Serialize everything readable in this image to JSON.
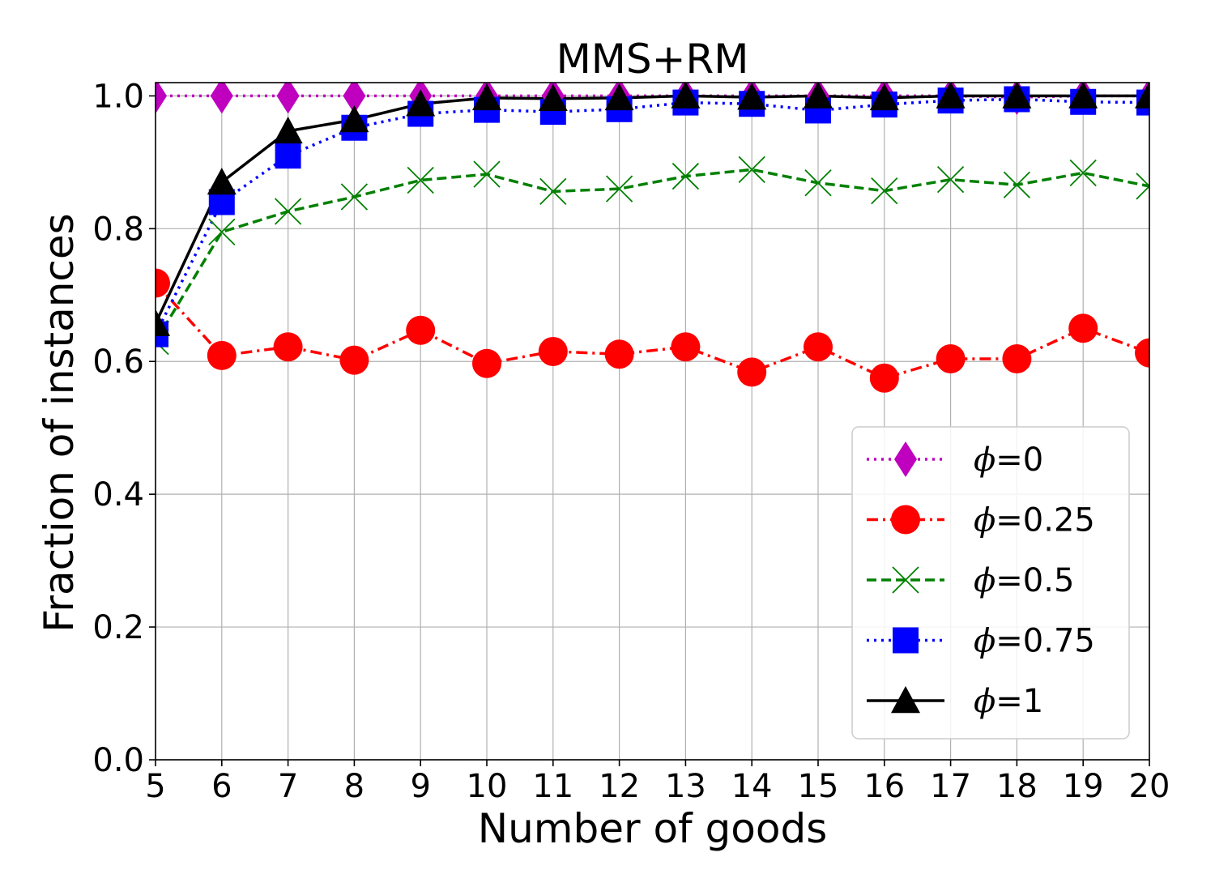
{
  "chart_data": {
    "type": "line",
    "title": "MMS+RM",
    "xlabel": "Number of goods",
    "ylabel": "Fraction of instances",
    "xlim": [
      5,
      20
    ],
    "ylim": [
      0.0,
      1.02
    ],
    "x": [
      5,
      6,
      7,
      8,
      9,
      10,
      11,
      12,
      13,
      14,
      15,
      16,
      17,
      18,
      19,
      20
    ],
    "xticks": [
      "5",
      "6",
      "7",
      "8",
      "9",
      "10",
      "11",
      "12",
      "13",
      "14",
      "15",
      "16",
      "17",
      "18",
      "19",
      "20"
    ],
    "yticks": [
      "0.0",
      "0.2",
      "0.4",
      "0.6",
      "0.8",
      "1.0"
    ],
    "grid": true,
    "legend_position": "lower-right",
    "series": [
      {
        "name": "ϕ=0",
        "legend_symbol": "ϕ",
        "legend_value": "=0",
        "color": "#bf00bf",
        "marker": "diamond",
        "line_style": "dotted",
        "values": [
          1.0,
          1.0,
          1.0,
          1.0,
          1.0,
          1.0,
          1.0,
          1.0,
          1.0,
          1.0,
          1.0,
          1.0,
          1.0,
          0.998,
          1.0,
          1.0
        ]
      },
      {
        "name": "ϕ=0.25",
        "legend_symbol": "ϕ",
        "legend_value": "=0.25",
        "color": "#ff0000",
        "marker": "circle",
        "line_style": "dashdot",
        "values": [
          0.718,
          0.609,
          0.622,
          0.602,
          0.647,
          0.597,
          0.615,
          0.611,
          0.622,
          0.584,
          0.622,
          0.575,
          0.604,
          0.604,
          0.65,
          0.613
        ]
      },
      {
        "name": "ϕ=0.5",
        "legend_symbol": "ϕ",
        "legend_value": "=0.5",
        "color": "#008000",
        "marker": "x",
        "line_style": "dashed",
        "values": [
          0.63,
          0.795,
          0.826,
          0.848,
          0.873,
          0.882,
          0.856,
          0.86,
          0.879,
          0.889,
          0.869,
          0.857,
          0.874,
          0.866,
          0.884,
          0.864
        ]
      },
      {
        "name": "ϕ=0.75",
        "legend_symbol": "ϕ",
        "legend_value": "=0.75",
        "color": "#0000ff",
        "marker": "square",
        "line_style": "dotted",
        "values": [
          0.641,
          0.84,
          0.91,
          0.952,
          0.973,
          0.979,
          0.976,
          0.98,
          0.99,
          0.988,
          0.978,
          0.987,
          0.993,
          0.995,
          0.991,
          0.99
        ]
      },
      {
        "name": "ϕ=1",
        "legend_symbol": "ϕ",
        "legend_value": "=1",
        "color": "#000000",
        "marker": "triangle",
        "line_style": "solid",
        "values": [
          0.657,
          0.87,
          0.947,
          0.964,
          0.988,
          0.997,
          0.996,
          0.997,
          1.0,
          0.998,
          1.0,
          0.997,
          1.0,
          1.0,
          1.0,
          1.0
        ]
      }
    ]
  }
}
